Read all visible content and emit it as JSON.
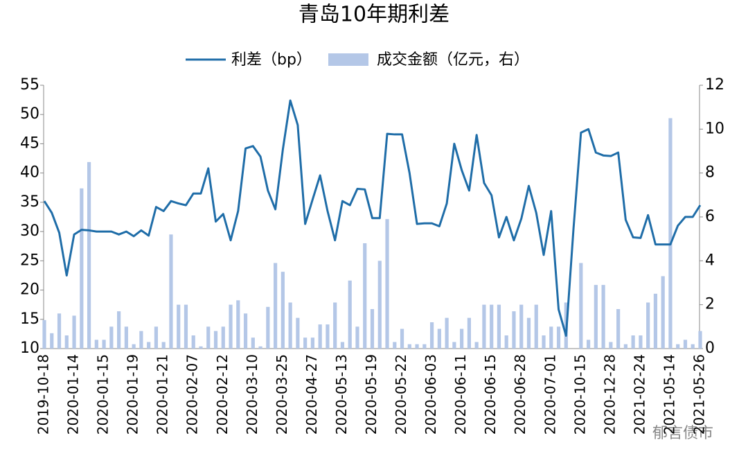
{
  "chart_data": {
    "type": "combo",
    "title": "青岛10年期利差",
    "categories": [
      "2019-10-18",
      null,
      null,
      null,
      "2020-01-14",
      null,
      null,
      null,
      "2020-01-15",
      null,
      null,
      null,
      "2020-01-19",
      null,
      null,
      null,
      "2020-01-21",
      null,
      null,
      null,
      "2020-02-07",
      null,
      null,
      null,
      "2020-02-12",
      null,
      null,
      null,
      "2020-03-10",
      null,
      null,
      null,
      "2020-03-25",
      null,
      null,
      null,
      "2020-04-27",
      null,
      null,
      null,
      "2020-05-13",
      null,
      null,
      null,
      "2020-05-19",
      null,
      null,
      null,
      "2020-05-22",
      null,
      null,
      null,
      "2020-06-03",
      null,
      null,
      null,
      "2020-06-11",
      null,
      null,
      null,
      "2020-06-15",
      null,
      null,
      null,
      "2020-06-28",
      null,
      null,
      null,
      "2020-07-01",
      null,
      null,
      null,
      "2020-10-15",
      null,
      null,
      null,
      "2020-12-28",
      null,
      null,
      null,
      "2021-02-24",
      null,
      null,
      null,
      "2021-05-14",
      null,
      null,
      null,
      "2021-05-26"
    ],
    "series": [
      {
        "name": "利差（bp）",
        "type": "line",
        "color": "#1f6da8",
        "values": [
          35.2,
          33.2,
          29.8,
          22.5,
          29.5,
          30.3,
          30.2,
          30.0,
          30.0,
          30.0,
          29.5,
          30.0,
          29.2,
          30.2,
          29.3,
          34.2,
          33.5,
          35.2,
          34.8,
          34.5,
          36.5,
          36.5,
          40.8,
          31.7,
          33.0,
          28.5,
          33.5,
          44.2,
          44.6,
          42.8,
          37.0,
          33.8,
          44.0,
          52.4,
          48.2,
          31.3,
          35.5,
          39.6,
          33.5,
          28.5,
          35.2,
          34.5,
          37.3,
          37.2,
          32.3,
          32.3,
          46.7,
          46.6,
          46.6,
          40.0,
          31.3,
          31.4,
          31.4,
          30.9,
          34.8,
          45.0,
          40.5,
          37.0,
          46.5,
          38.3,
          36.2,
          29.0,
          32.5,
          28.5,
          32.2,
          37.8,
          33.2,
          26.0,
          33.5,
          16.7,
          12.2,
          30.5,
          46.9,
          47.5,
          43.5,
          43.0,
          42.9,
          43.5,
          32.0,
          29.0,
          28.9,
          32.8,
          27.8,
          27.8,
          27.8,
          31.0,
          32.5,
          32.5,
          34.5
        ]
      },
      {
        "name": "成交金额（亿元，右）",
        "type": "bar",
        "axis": "y2",
        "color": "#b4c7e7",
        "values": [
          1.3,
          0.7,
          1.6,
          0.6,
          1.5,
          7.3,
          8.5,
          0.4,
          0.4,
          1.0,
          1.7,
          1.0,
          0.2,
          0.8,
          0.3,
          1.0,
          0.3,
          5.2,
          2.0,
          2.0,
          0.6,
          0.1,
          1.0,
          0.8,
          1.0,
          2.0,
          2.2,
          1.6,
          0.5,
          0.1,
          1.9,
          3.9,
          3.5,
          2.1,
          1.4,
          0.5,
          0.5,
          1.1,
          1.1,
          2.1,
          0.3,
          3.1,
          1.0,
          4.8,
          1.8,
          4.0,
          5.9,
          0.3,
          0.9,
          0.2,
          0.2,
          0.2,
          1.2,
          0.9,
          1.4,
          0.3,
          0.9,
          1.4,
          0.3,
          2.0,
          2.0,
          2.0,
          0.6,
          1.7,
          2.0,
          1.4,
          2.0,
          0.6,
          1.0,
          1.0,
          2.1,
          0,
          3.9,
          0.4,
          2.9,
          2.9,
          0.3,
          1.8,
          0.2,
          0.6,
          0.6,
          2.1,
          2.5,
          3.3,
          10.5,
          0.2,
          0.4,
          0.2,
          0.8
        ]
      }
    ],
    "ylim": [
      10,
      55
    ],
    "yticks": [
      10,
      15,
      20,
      25,
      30,
      35,
      40,
      45,
      50,
      55
    ],
    "y2lim": [
      0,
      12
    ],
    "y2ticks": [
      0,
      2,
      4,
      6,
      8,
      10,
      12
    ],
    "watermark": "郁言债市"
  }
}
